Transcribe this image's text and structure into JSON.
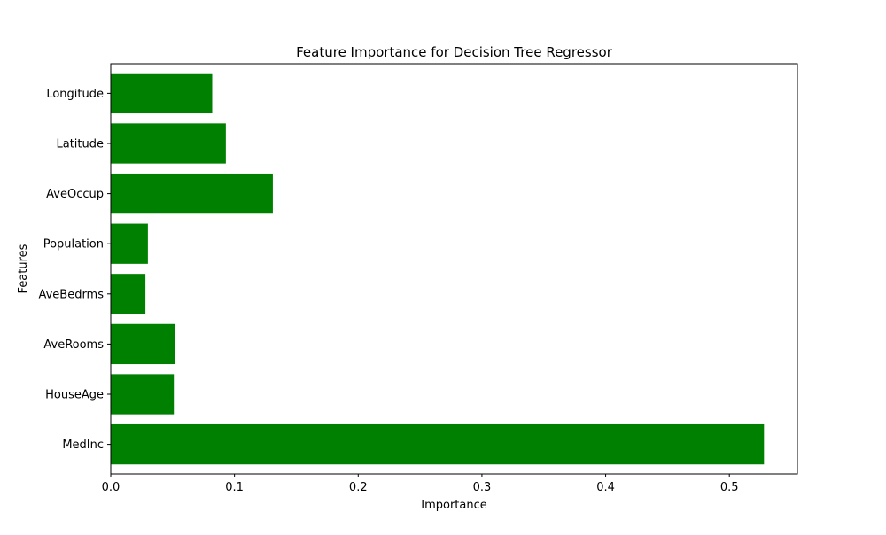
{
  "chart_data": {
    "type": "bar",
    "orientation": "horizontal",
    "title": "Feature Importance for Decision Tree Regressor",
    "xlabel": "Importance",
    "ylabel": "Features",
    "categories": [
      "MedInc",
      "HouseAge",
      "AveRooms",
      "AveBedrms",
      "Population",
      "AveOccup",
      "Latitude",
      "Longitude"
    ],
    "values": [
      0.528,
      0.051,
      0.052,
      0.028,
      0.03,
      0.131,
      0.093,
      0.082
    ],
    "xlim": [
      0,
      0.555
    ],
    "xticks": [
      0.0,
      0.1,
      0.2,
      0.3,
      0.4,
      0.5
    ],
    "xtick_labels": [
      "0.0",
      "0.1",
      "0.2",
      "0.3",
      "0.4",
      "0.5"
    ],
    "bar_color": "#008000",
    "grid": false,
    "legend": false
  }
}
